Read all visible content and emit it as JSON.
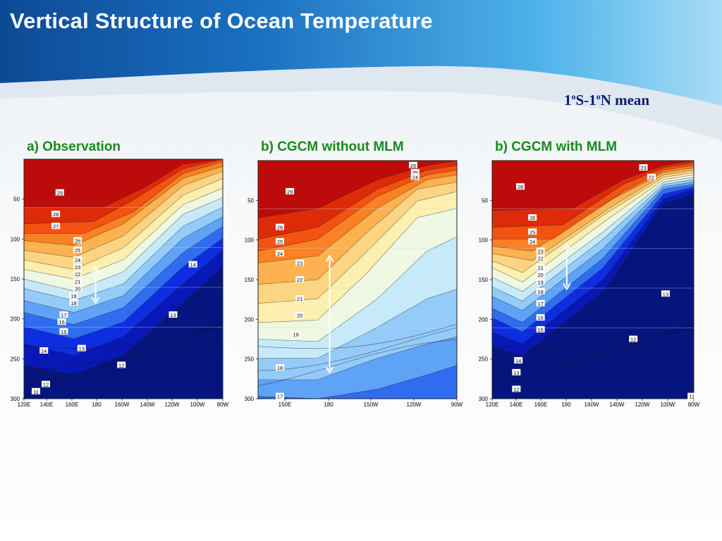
{
  "slide": {
    "title": "Vertical Structure of Ocean Temperature",
    "subtitle": {
      "p1": "1",
      "s1": "o",
      "p2": "S-1",
      "s2": "o",
      "p3": "N mean"
    }
  },
  "chart_data": [
    {
      "type": "contour",
      "panel_title": "a) Observation",
      "x_ticks": [
        "120E",
        "140E",
        "160E",
        "180",
        "160W",
        "140W",
        "120W",
        "100W",
        "80W"
      ],
      "y_ticks": [
        50,
        100,
        150,
        200,
        250,
        300
      ],
      "ylim": [
        0,
        300
      ],
      "xlim": [
        "120E",
        "80W"
      ],
      "isotherm_labels": [
        "29",
        "28",
        "27",
        "26",
        "25",
        "24",
        "23",
        "22",
        "21",
        "20",
        "19",
        "18",
        "17",
        "16",
        "15",
        "14",
        "14",
        "13",
        "13",
        "12",
        "12",
        "11"
      ],
      "annotation": "double-headed arrow spanning thermocline depth"
    },
    {
      "type": "contour",
      "panel_title": "b) CGCM without MLM",
      "x_ticks": [
        "150E",
        "180",
        "150W",
        "120W",
        "90W"
      ],
      "y_ticks": [
        50,
        100,
        150,
        200,
        250,
        300
      ],
      "ylim": [
        0,
        300
      ],
      "xlim": [
        "130E",
        "90W"
      ],
      "isotherm_labels": [
        "26",
        "25",
        "24",
        "29",
        "26",
        "25",
        "24",
        "23",
        "22",
        "21",
        "20",
        "19",
        "18",
        "17"
      ],
      "annotation": "double-headed arrow spanning thermocline depth"
    },
    {
      "type": "contour",
      "panel_title": "b) CGCM with MLM",
      "x_ticks": [
        "120E",
        "140E",
        "160E",
        "180",
        "160W",
        "140W",
        "120W",
        "100W",
        "80W"
      ],
      "y_ticks": [
        50,
        100,
        150,
        200,
        250,
        300
      ],
      "ylim": [
        0,
        300
      ],
      "xlim": [
        "120E",
        "80W"
      ],
      "isotherm_labels": [
        "23",
        "22",
        "28",
        "26",
        "25",
        "24",
        "23",
        "22",
        "21",
        "20",
        "19",
        "18",
        "17",
        "16",
        "15",
        "14",
        "13",
        "13",
        "12",
        "12",
        "11"
      ],
      "annotation": "double-headed arrow spanning thermocline depth"
    }
  ],
  "colors": {
    "c0": "#bd0b0b",
    "c1": "#dd2a08",
    "c2": "#f35211",
    "c3": "#fb8124",
    "c4": "#fdb14f",
    "c5": "#fdd582",
    "c6": "#fdefae",
    "c7": "#eef8e2",
    "c8": "#c6eafa",
    "c9": "#94cbf9",
    "c10": "#5fa3f6",
    "c11": "#2f6cf0",
    "c12": "#0d2ee0",
    "c13": "#0818b6",
    "c14": "#06147e",
    "title_green": "#1a8a1a",
    "header_blue": "#1f7fd0"
  }
}
